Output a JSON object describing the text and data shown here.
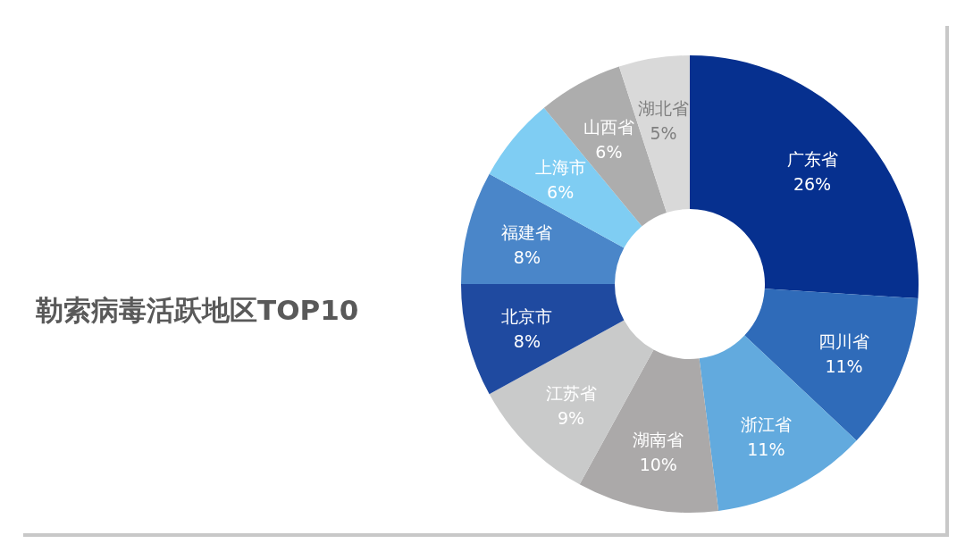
{
  "chart_data": {
    "type": "donut",
    "title": "勒索病毒活跃地区TOP10",
    "categories": [
      "广东省",
      "四川省",
      "浙江省",
      "湖南省",
      "江苏省",
      "北京市",
      "福建省",
      "上海市",
      "山西省",
      "湖北省"
    ],
    "values": [
      26,
      11,
      11,
      10,
      9,
      8,
      8,
      6,
      6,
      5
    ],
    "value_labels": [
      "26%",
      "11%",
      "11%",
      "10%",
      "9%",
      "8%",
      "8%",
      "6%",
      "6%",
      "5%"
    ],
    "colors": [
      "#06308f",
      "#2f6bb9",
      "#62aade",
      "#aba9a9",
      "#c9caca",
      "#1f4aa0",
      "#4a86c9",
      "#7fcdf3",
      "#adadad",
      "#d9d9d9"
    ],
    "legend": false
  }
}
